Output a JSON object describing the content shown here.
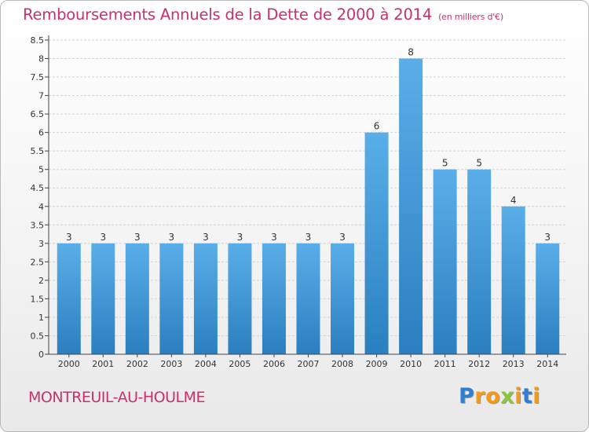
{
  "title": "Remboursements Annuels de la Dette de 2000 à 2014",
  "subtitle": "(en milliers d'€)",
  "commune": "MONTREUIL-AU-HOULME",
  "logo": {
    "text": "Proxiti",
    "letters": [
      {
        "ch": "P",
        "color": "#2f7fd3"
      },
      {
        "ch": "r",
        "color": "#f39a1b"
      },
      {
        "ch": "o",
        "color": "#f39a1b"
      },
      {
        "ch": "x",
        "color": "#8cc63f"
      },
      {
        "ch": "i",
        "color": "#f39a1b"
      },
      {
        "ch": "t",
        "color": "#2f7fd3"
      },
      {
        "ch": "i",
        "color": "#f39a1b"
      }
    ]
  },
  "colors": {
    "title": "#c8306e",
    "bar_light": "#5aaee8",
    "bar_dark": "#2a7fc0",
    "grid": "#d4d4d4",
    "axis": "#444444",
    "text": "#333333"
  },
  "chart_data": {
    "type": "bar",
    "title": "Remboursements Annuels de la Dette de 2000 à 2014",
    "subtitle": "(en milliers d'€)",
    "xlabel": "",
    "ylabel": "",
    "categories": [
      "2000",
      "2001",
      "2002",
      "2003",
      "2004",
      "2005",
      "2006",
      "2007",
      "2008",
      "2009",
      "2010",
      "2011",
      "2012",
      "2013",
      "2014"
    ],
    "values": [
      3,
      3,
      3,
      3,
      3,
      3,
      3,
      3,
      3,
      6,
      8,
      5,
      5,
      4,
      3
    ],
    "data_labels": [
      "3",
      "3",
      "3",
      "3",
      "3",
      "3",
      "3",
      "3",
      "3",
      "6",
      "8",
      "5",
      "5",
      "4",
      "3"
    ],
    "ylim": [
      0,
      8.5
    ],
    "yticks": [
      0,
      0.5,
      1,
      1.5,
      2,
      2.5,
      3,
      3.5,
      4,
      4.5,
      5,
      5.5,
      6,
      6.5,
      7,
      7.5,
      8,
      8.5
    ],
    "ytick_labels": [
      "0",
      "0.5",
      "1",
      "1.5",
      "2",
      "2.5",
      "3",
      "3.5",
      "4",
      "4.5",
      "5",
      "5.5",
      "6",
      "6.5",
      "7",
      "7.5",
      "8",
      "8.5"
    ],
    "grid": true,
    "legend": "none"
  }
}
